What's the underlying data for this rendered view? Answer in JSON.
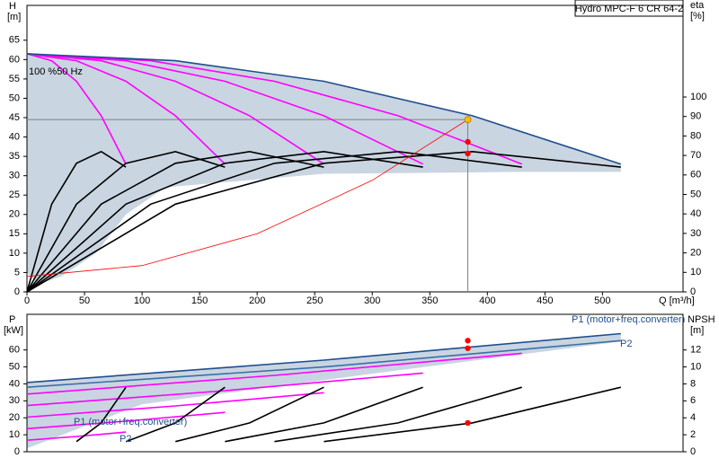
{
  "chart_data": [
    {
      "type": "line",
      "title": "Hydro MPC-F 6 CR 64-2",
      "annotations": [
        "100 %50 Hz"
      ],
      "x_label": "Q [m³/h]",
      "y_label": "H",
      "y_unit": "[m]",
      "y2_label": "eta",
      "y2_unit": "[%]",
      "xlim": [
        0,
        570
      ],
      "xticks": [
        0,
        50,
        100,
        150,
        200,
        250,
        300,
        350,
        400,
        450,
        500
      ],
      "ylim": [
        0,
        74
      ],
      "yticks": [
        0,
        5,
        10,
        15,
        20,
        25,
        30,
        35,
        40,
        45,
        50,
        55,
        60,
        65
      ],
      "y2lim": [
        0,
        147
      ],
      "y2ticks": [
        0,
        10,
        20,
        30,
        40,
        50,
        60,
        70,
        80,
        90,
        100
      ],
      "area": {
        "color": "#c9d5e1",
        "x": [
          0,
          129,
          258,
          387,
          516,
          516,
          430,
          258,
          120,
          86,
          60,
          30,
          10,
          0
        ],
        "values": [
          61.5,
          59.7,
          54.4,
          45.5,
          33,
          31,
          31,
          30.5,
          27,
          20,
          10,
          4,
          2,
          5
        ]
      },
      "series": [
        {
          "color": "#ff00ff",
          "x": [
            0,
            21.5,
            43,
            64.5,
            86
          ],
          "values": [
            61.5,
            59.7,
            54.4,
            45.5,
            33
          ]
        },
        {
          "color": "#ff00ff",
          "x": [
            0,
            43,
            86,
            129,
            172
          ],
          "values": [
            61.5,
            59.7,
            54.4,
            45.5,
            33
          ]
        },
        {
          "color": "#ff00ff",
          "x": [
            0,
            64.5,
            129,
            193.5,
            258
          ],
          "values": [
            61.5,
            59.7,
            54.4,
            45.5,
            33
          ]
        },
        {
          "color": "#ff00ff",
          "x": [
            0,
            86,
            172,
            258,
            344
          ],
          "values": [
            61.5,
            59.7,
            54.4,
            45.5,
            33
          ]
        },
        {
          "color": "#ff00ff",
          "x": [
            0,
            107.5,
            215,
            322.5,
            430
          ],
          "values": [
            61.5,
            59.7,
            54.4,
            45.5,
            33
          ]
        },
        {
          "color": "#1f4e8c",
          "x": [
            0,
            129,
            258,
            387,
            516
          ],
          "values": [
            61.5,
            59.7,
            54.4,
            45.5,
            33
          ]
        },
        {
          "color": "#000000",
          "axis": "y2",
          "x": [
            0,
            21.5,
            43,
            64.5,
            86
          ],
          "values": [
            0,
            45,
            66,
            72,
            64
          ]
        },
        {
          "color": "#000000",
          "axis": "y2",
          "x": [
            0,
            43,
            86,
            129,
            172
          ],
          "values": [
            0,
            45,
            66,
            72,
            64
          ]
        },
        {
          "color": "#000000",
          "axis": "y2",
          "x": [
            0,
            64.5,
            129,
            193.5,
            258
          ],
          "values": [
            0,
            45,
            66,
            72,
            64
          ]
        },
        {
          "color": "#000000",
          "axis": "y2",
          "x": [
            0,
            86,
            172,
            258,
            344
          ],
          "values": [
            0,
            45,
            66,
            72,
            64
          ]
        },
        {
          "color": "#000000",
          "axis": "y2",
          "x": [
            0,
            107.5,
            215,
            322.5,
            430
          ],
          "values": [
            0,
            45,
            66,
            72,
            64
          ]
        },
        {
          "color": "#000000",
          "axis": "y2",
          "x": [
            0,
            129,
            258,
            387,
            516
          ],
          "values": [
            0,
            45,
            66,
            72,
            64
          ]
        },
        {
          "color": "#ff0000",
          "x": [
            0,
            100,
            200,
            300,
            383
          ],
          "values": [
            4,
            6.8,
            15,
            28.8,
            44.5
          ]
        }
      ],
      "duty_point": {
        "x": 383,
        "y": 44.5,
        "color": "#f5c400",
        "guide_color": "#808080"
      },
      "markers": [
        {
          "color": "#ff0000",
          "axis": "y2",
          "x": [
            383,
            383
          ],
          "values": [
            77,
            71
          ]
        }
      ]
    },
    {
      "type": "line",
      "annotations": [
        "P1 (motor+freq.converter)",
        "P2",
        "P1 (motor+freq.converter)",
        "P2"
      ],
      "y_label": "P",
      "y_unit": "[kW]",
      "y2_label": "NPSH",
      "y2_unit": "[m]",
      "xlim": [
        0,
        570
      ],
      "ylim": [
        0,
        81
      ],
      "yticks": [
        0,
        10,
        20,
        30,
        40,
        50,
        60
      ],
      "y2lim": [
        0,
        16.2
      ],
      "y2ticks": [
        0,
        2,
        4,
        6,
        8,
        10,
        12
      ],
      "area": {
        "color": "#c9d5e1",
        "x": [
          0,
          258,
          516,
          516,
          300,
          100,
          0
        ],
        "values": [
          40.8,
          54,
          69.6,
          65,
          46,
          28,
          2
        ]
      },
      "series": [
        {
          "color": "#ff00ff",
          "x": [
            0,
            43,
            86
          ],
          "values": [
            6.8,
            9,
            11.6
          ]
        },
        {
          "color": "#ff00ff",
          "x": [
            0,
            86,
            172
          ],
          "values": [
            13.6,
            18,
            23.2
          ]
        },
        {
          "color": "#ff00ff",
          "x": [
            0,
            129,
            258
          ],
          "values": [
            20.4,
            27,
            34.8
          ]
        },
        {
          "color": "#ff00ff",
          "x": [
            0,
            172,
            344
          ],
          "values": [
            27.2,
            36,
            46.4
          ]
        },
        {
          "color": "#ff00ff",
          "x": [
            0,
            215,
            430
          ],
          "values": [
            34,
            45,
            58
          ]
        },
        {
          "color": "#1f4e8c",
          "x": [
            0,
            258,
            516
          ],
          "values": [
            40.8,
            54,
            69.6
          ]
        },
        {
          "color": "#3a6fa8",
          "x": [
            0,
            258,
            516
          ],
          "values": [
            38,
            50,
            65.5
          ]
        },
        {
          "color": "#000000",
          "axis": "y2",
          "x": [
            43,
            64.5,
            86
          ],
          "values": [
            1.2,
            3.4,
            7.6
          ]
        },
        {
          "color": "#000000",
          "axis": "y2",
          "x": [
            86,
            129,
            172
          ],
          "values": [
            1.2,
            3.4,
            7.6
          ]
        },
        {
          "color": "#000000",
          "axis": "y2",
          "x": [
            129,
            193.5,
            258
          ],
          "values": [
            1.2,
            3.4,
            7.6
          ]
        },
        {
          "color": "#000000",
          "axis": "y2",
          "x": [
            172,
            258,
            344
          ],
          "values": [
            1.2,
            3.4,
            7.6
          ]
        },
        {
          "color": "#000000",
          "axis": "y2",
          "x": [
            215,
            322.5,
            430
          ],
          "values": [
            1.2,
            3.4,
            7.6
          ]
        },
        {
          "color": "#000000",
          "axis": "y2",
          "x": [
            258,
            387,
            516
          ],
          "values": [
            1.2,
            3.4,
            7.6
          ]
        }
      ],
      "markers": [
        {
          "color": "#ff0000",
          "axis": "y",
          "x": [
            383,
            383
          ],
          "values": [
            65.5,
            61
          ]
        },
        {
          "color": "#ff0000",
          "axis": "y2",
          "x": [
            383
          ],
          "values": [
            3.4
          ]
        }
      ]
    }
  ]
}
